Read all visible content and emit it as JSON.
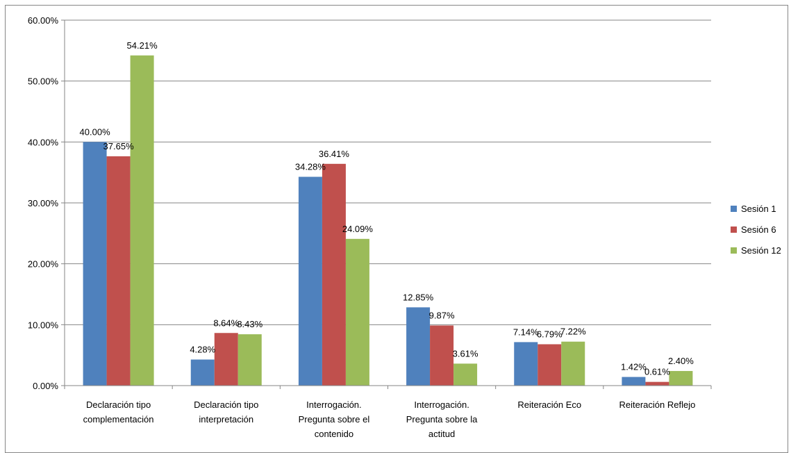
{
  "chart_data": {
    "type": "bar",
    "title": "",
    "xlabel": "",
    "ylabel": "",
    "ylim": [
      0,
      60
    ],
    "y_ticks": [
      "0.00%",
      "10.00%",
      "20.00%",
      "30.00%",
      "40.00%",
      "50.00%",
      "60.00%"
    ],
    "y_tick_values": [
      0,
      10,
      20,
      30,
      40,
      50,
      60
    ],
    "grid": "horizontal",
    "legend_position": "right",
    "categories": [
      [
        "Declaración tipo",
        "complementación"
      ],
      [
        "Declaración tipo",
        "interpretación"
      ],
      [
        "Interrogación.",
        "Pregunta sobre el",
        "contenido"
      ],
      [
        "Interrogación.",
        "Pregunta sobre la",
        "actitud"
      ],
      [
        "Reiteración Eco"
      ],
      [
        "Reiteración Reflejo"
      ]
    ],
    "series": [
      {
        "name": "Sesión 1",
        "color": "#4F81BD",
        "values": [
          40.0,
          4.28,
          34.28,
          12.85,
          7.14,
          1.42
        ],
        "labels": [
          "40.00%",
          "4.28%",
          "34.28%",
          "12.85%",
          "7.14%",
          "1.42%"
        ]
      },
      {
        "name": "Sesión 6",
        "color": "#C0504D",
        "values": [
          37.65,
          8.64,
          36.41,
          9.87,
          6.79,
          0.61
        ],
        "labels": [
          "37.65%",
          "8.64%",
          "36.41%",
          "9.87%",
          "6.79%",
          "0.61%"
        ]
      },
      {
        "name": "Sesión 12",
        "color": "#9BBB59",
        "values": [
          54.21,
          8.43,
          24.09,
          3.61,
          7.22,
          2.4
        ],
        "labels": [
          "54.21%",
          "8.43%",
          "24.09%",
          "3.61%",
          "7.22%",
          "2.40%"
        ]
      }
    ],
    "colors": {
      "grid": "#868686",
      "axis": "#868686",
      "text": "#000000"
    }
  }
}
